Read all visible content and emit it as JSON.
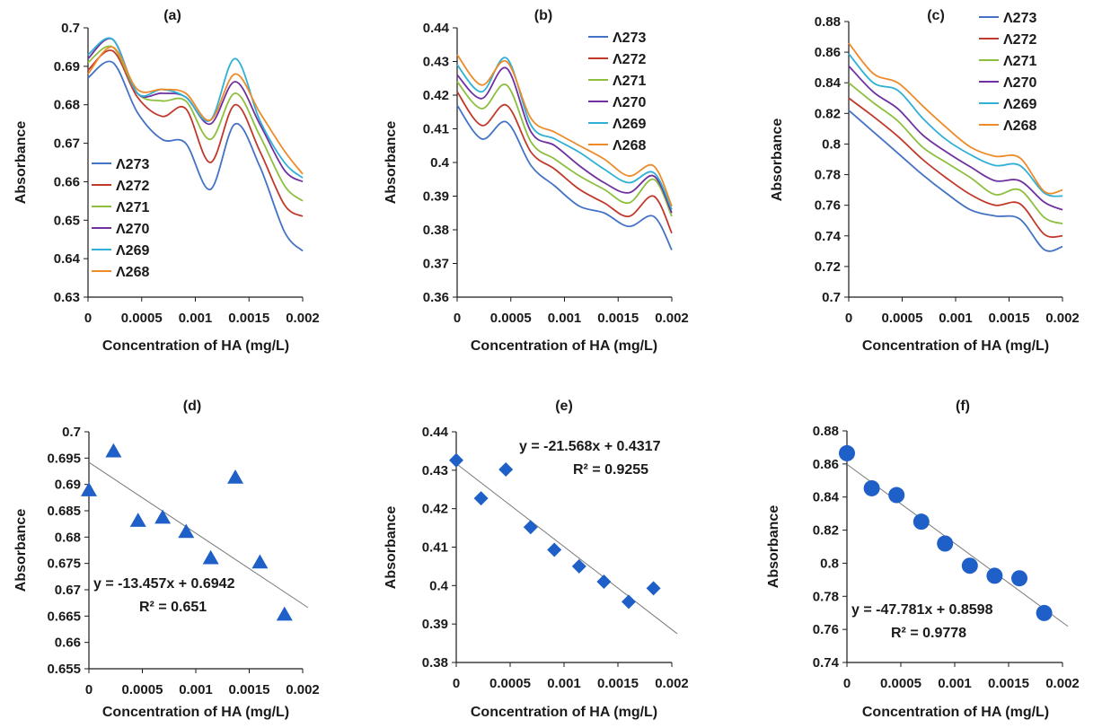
{
  "colors": {
    "l273": "#4472c4",
    "l272": "#c0392b",
    "l271": "#8dbf3f",
    "l270": "#7030a0",
    "l269": "#31b0d5",
    "l268": "#ed8b2a",
    "marker": "#1f5fc8",
    "trend": "#7a7a7a",
    "axis": "#1a1a1a"
  },
  "chart_data": [
    {
      "type": "line",
      "panel_label": "(a)",
      "xlabel": "Concentration of HA (mg/L)",
      "ylabel": "Absorbance",
      "xlim": [
        0,
        0.002
      ],
      "ylim": [
        0.63,
        0.7
      ],
      "xticks": [
        0,
        0.0005,
        0.001,
        0.0015,
        0.002
      ],
      "xtick_labels": [
        "0",
        "0.0005",
        "0.001",
        "0.0015",
        "0.002"
      ],
      "yticks": [
        0.63,
        0.64,
        0.65,
        0.66,
        0.67,
        0.68,
        0.69,
        0.7
      ],
      "ytick_labels": [
        "0.63",
        "0.64",
        "0.65",
        "0.66",
        "0.67",
        "0.68",
        "0.69",
        "0.7"
      ],
      "legend": "bottom-left",
      "x": [
        0,
        0.00023,
        0.00046,
        0.00069,
        0.00091,
        0.00114,
        0.00137,
        0.0016,
        0.00183,
        0.002
      ],
      "series": [
        {
          "name": "Λ273",
          "color_key": "l273",
          "values": [
            0.687,
            0.691,
            0.678,
            0.671,
            0.67,
            0.658,
            0.675,
            0.664,
            0.647,
            0.642
          ]
        },
        {
          "name": "Λ272",
          "color_key": "l272",
          "values": [
            0.689,
            0.694,
            0.682,
            0.677,
            0.679,
            0.665,
            0.68,
            0.668,
            0.654,
            0.651
          ]
        },
        {
          "name": "Λ271",
          "color_key": "l271",
          "values": [
            0.691,
            0.695,
            0.683,
            0.681,
            0.681,
            0.671,
            0.683,
            0.672,
            0.659,
            0.655
          ]
        },
        {
          "name": "Λ270",
          "color_key": "l270",
          "values": [
            0.692,
            0.697,
            0.683,
            0.683,
            0.682,
            0.675,
            0.686,
            0.675,
            0.663,
            0.66
          ]
        },
        {
          "name": "Λ269",
          "color_key": "l269",
          "values": [
            0.693,
            0.697,
            0.683,
            0.684,
            0.682,
            0.676,
            0.692,
            0.676,
            0.665,
            0.661
          ]
        },
        {
          "name": "Λ268",
          "color_key": "l268",
          "values": [
            0.688,
            0.695,
            0.684,
            0.684,
            0.683,
            0.676,
            0.688,
            0.678,
            0.668,
            0.662
          ]
        }
      ]
    },
    {
      "type": "line",
      "panel_label": "(b)",
      "xlabel": "Concentration of HA (mg/L)",
      "ylabel": "Absorbance",
      "xlim": [
        0,
        0.002
      ],
      "ylim": [
        0.36,
        0.44
      ],
      "xticks": [
        0,
        0.0005,
        0.001,
        0.0015,
        0.002
      ],
      "xtick_labels": [
        "0",
        "0.0005",
        "0.001",
        "0.0015",
        "0.002"
      ],
      "yticks": [
        0.36,
        0.37,
        0.38,
        0.39,
        0.4,
        0.41,
        0.42,
        0.43,
        0.44
      ],
      "ytick_labels": [
        "0.36",
        "0.37",
        "0.38",
        "0.39",
        "0.4",
        "0.41",
        "0.42",
        "0.43",
        "0.44"
      ],
      "legend": "top-right",
      "x": [
        0,
        0.00023,
        0.00046,
        0.00069,
        0.00091,
        0.00114,
        0.00137,
        0.0016,
        0.00183,
        0.002
      ],
      "series": [
        {
          "name": "Λ273",
          "color_key": "l273",
          "values": [
            0.417,
            0.407,
            0.412,
            0.399,
            0.393,
            0.387,
            0.385,
            0.381,
            0.384,
            0.374
          ]
        },
        {
          "name": "Λ272",
          "color_key": "l272",
          "values": [
            0.421,
            0.411,
            0.417,
            0.403,
            0.398,
            0.392,
            0.388,
            0.384,
            0.39,
            0.379
          ]
        },
        {
          "name": "Λ271",
          "color_key": "l271",
          "values": [
            0.424,
            0.416,
            0.423,
            0.406,
            0.401,
            0.396,
            0.392,
            0.388,
            0.395,
            0.384
          ]
        },
        {
          "name": "Λ270",
          "color_key": "l270",
          "values": [
            0.426,
            0.419,
            0.428,
            0.409,
            0.405,
            0.399,
            0.394,
            0.391,
            0.396,
            0.385
          ]
        },
        {
          "name": "Λ269",
          "color_key": "l269",
          "values": [
            0.429,
            0.421,
            0.431,
            0.411,
            0.407,
            0.403,
            0.398,
            0.394,
            0.397,
            0.386
          ]
        },
        {
          "name": "Λ268",
          "color_key": "l268",
          "values": [
            0.432,
            0.423,
            0.43,
            0.413,
            0.409,
            0.405,
            0.401,
            0.396,
            0.399,
            0.387
          ]
        }
      ]
    },
    {
      "type": "line",
      "panel_label": "(c)",
      "xlabel": "Concentration of HA (mg/L)",
      "ylabel": "Absorbance",
      "xlim": [
        0,
        0.002
      ],
      "ylim": [
        0.7,
        0.88
      ],
      "xticks": [
        0,
        0.0005,
        0.001,
        0.0015,
        0.002
      ],
      "xtick_labels": [
        "0",
        "0.0005",
        "0.001",
        "0.0015",
        "0.002"
      ],
      "yticks": [
        0.7,
        0.72,
        0.74,
        0.76,
        0.78,
        0.8,
        0.82,
        0.84,
        0.86,
        0.88
      ],
      "ytick_labels": [
        "0.7",
        "0.72",
        "0.74",
        "0.76",
        "0.78",
        "0.8",
        "0.82",
        "0.84",
        "0.86",
        "0.88"
      ],
      "legend": "top-right",
      "x": [
        0,
        0.00023,
        0.00046,
        0.00069,
        0.00091,
        0.00114,
        0.00137,
        0.0016,
        0.00183,
        0.002
      ],
      "series": [
        {
          "name": "Λ273",
          "color_key": "l273",
          "values": [
            0.822,
            0.808,
            0.794,
            0.78,
            0.768,
            0.757,
            0.753,
            0.751,
            0.731,
            0.733
          ]
        },
        {
          "name": "Λ272",
          "color_key": "l272",
          "values": [
            0.83,
            0.818,
            0.805,
            0.79,
            0.778,
            0.767,
            0.76,
            0.761,
            0.741,
            0.74
          ]
        },
        {
          "name": "Λ271",
          "color_key": "l271",
          "values": [
            0.84,
            0.827,
            0.815,
            0.798,
            0.788,
            0.778,
            0.767,
            0.77,
            0.752,
            0.748
          ]
        },
        {
          "name": "Λ270",
          "color_key": "l270",
          "values": [
            0.851,
            0.834,
            0.823,
            0.806,
            0.795,
            0.785,
            0.776,
            0.776,
            0.762,
            0.757
          ]
        },
        {
          "name": "Λ269",
          "color_key": "l269",
          "values": [
            0.859,
            0.84,
            0.835,
            0.817,
            0.803,
            0.793,
            0.786,
            0.786,
            0.768,
            0.766
          ]
        },
        {
          "name": "Λ268",
          "color_key": "l268",
          "values": [
            0.866,
            0.846,
            0.84,
            0.825,
            0.811,
            0.798,
            0.792,
            0.791,
            0.769,
            0.77
          ]
        }
      ]
    },
    {
      "type": "scatter",
      "panel_label": "(d)",
      "marker": "triangle",
      "xlabel": "Concentration of HA (mg/L)",
      "ylabel": "Absorbance",
      "xlim": [
        0,
        0.002
      ],
      "ylim": [
        0.655,
        0.7
      ],
      "xticks": [
        0,
        0.0005,
        0.001,
        0.0015,
        0.002
      ],
      "xtick_labels": [
        "0",
        "0.0005",
        "0.001",
        "0.0015",
        "0.002"
      ],
      "yticks": [
        0.655,
        0.66,
        0.665,
        0.67,
        0.675,
        0.68,
        0.685,
        0.69,
        0.695,
        0.7
      ],
      "ytick_labels": [
        "0.655",
        "0.66",
        "0.665",
        "0.67",
        "0.675",
        "0.68",
        "0.685",
        "0.69",
        "0.695",
        "0.7"
      ],
      "x": [
        0,
        0.00023,
        0.00046,
        0.00069,
        0.00091,
        0.00114,
        0.00137,
        0.0016,
        0.00183
      ],
      "y": [
        0.6889,
        0.6963,
        0.6831,
        0.6837,
        0.681,
        0.676,
        0.6913,
        0.6752,
        0.6653
      ],
      "trend": {
        "slope": -13.457,
        "intercept": 0.6942,
        "x_end": 0.00205
      },
      "annotation": {
        "equation": "y = -13.457x + 0.6942",
        "r2": "R² = 0.651"
      }
    },
    {
      "type": "scatter",
      "panel_label": "(e)",
      "marker": "diamond",
      "xlabel": "Concentration of HA (mg/L)",
      "ylabel": "Absorbance",
      "xlim": [
        0,
        0.002
      ],
      "ylim": [
        0.38,
        0.44
      ],
      "xticks": [
        0,
        0.0005,
        0.001,
        0.0015,
        0.002
      ],
      "xtick_labels": [
        "0",
        "0.0005",
        "0.001",
        "0.0015",
        "0.002"
      ],
      "yticks": [
        0.38,
        0.39,
        0.4,
        0.41,
        0.42,
        0.43,
        0.44
      ],
      "ytick_labels": [
        "0.38",
        "0.39",
        "0.4",
        "0.41",
        "0.42",
        "0.43",
        "0.44"
      ],
      "x": [
        0,
        0.00023,
        0.00046,
        0.00069,
        0.00091,
        0.00114,
        0.00137,
        0.0016,
        0.00183
      ],
      "y": [
        0.4326,
        0.4227,
        0.4302,
        0.4152,
        0.4093,
        0.405,
        0.401,
        0.3958,
        0.3993
      ],
      "trend": {
        "slope": -21.568,
        "intercept": 0.4317,
        "x_end": 0.00205
      },
      "annotation": {
        "equation": "y = -21.568x + 0.4317",
        "r2": "R² = 0.9255"
      }
    },
    {
      "type": "scatter",
      "panel_label": "(f)",
      "marker": "circle",
      "xlabel": "Concentration of HA (mg/L)",
      "ylabel": "Absorbance",
      "xlim": [
        0,
        0.002
      ],
      "ylim": [
        0.74,
        0.88
      ],
      "xticks": [
        0,
        0.0005,
        0.001,
        0.0015,
        0.002
      ],
      "xtick_labels": [
        "0",
        "0.0005",
        "0.001",
        "0.0015",
        "0.002"
      ],
      "yticks": [
        0.74,
        0.76,
        0.78,
        0.8,
        0.82,
        0.84,
        0.86,
        0.88
      ],
      "ytick_labels": [
        "0.74",
        "0.76",
        "0.78",
        "0.8",
        "0.82",
        "0.84",
        "0.86",
        "0.88"
      ],
      "x": [
        0,
        0.00023,
        0.00046,
        0.00069,
        0.00091,
        0.00114,
        0.00137,
        0.0016,
        0.00183
      ],
      "y": [
        0.8665,
        0.8453,
        0.8412,
        0.8251,
        0.8119,
        0.7985,
        0.7924,
        0.7909,
        0.7699
      ],
      "trend": {
        "slope": -47.781,
        "intercept": 0.8598,
        "x_end": 0.00205
      },
      "annotation": {
        "equation": "y = -47.781x + 0.8598",
        "r2": "R² = 0.9778"
      }
    }
  ]
}
